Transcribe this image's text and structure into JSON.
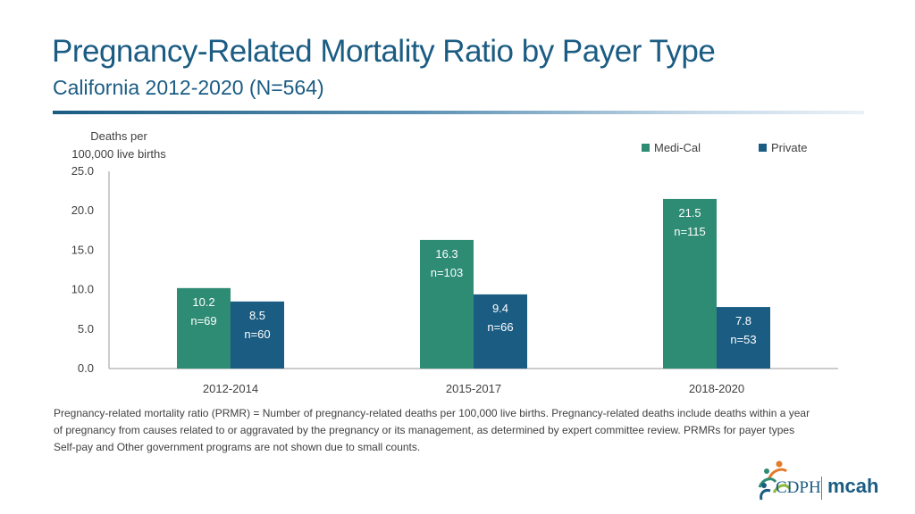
{
  "header": {
    "title": "Pregnancy-Related Mortality Ratio by Payer Type",
    "subtitle": "California 2012-2020 (N=564)"
  },
  "colors": {
    "title": "#1b5c83",
    "medi_cal": "#2e8b74",
    "private": "#1b5c83",
    "axis": "#999999",
    "text": "#404040"
  },
  "chart_data": {
    "type": "bar",
    "title": "",
    "ylabel_lines": [
      "Deaths per",
      "100,000 live births"
    ],
    "xlabel": "",
    "ylim": [
      0,
      25
    ],
    "yticks": [
      0,
      5,
      10,
      15,
      20,
      25
    ],
    "ytick_labels": [
      "0.0",
      "5.0",
      "10.0",
      "15.0",
      "20.0",
      "25.0"
    ],
    "categories": [
      "2012-2014",
      "2015-2017",
      "2018-2020"
    ],
    "legend_position": "top-right",
    "series": [
      {
        "name": "Medi-Cal",
        "color": "#2e8b74",
        "values": [
          10.2,
          16.3,
          21.5
        ],
        "value_labels": [
          "10.2",
          "16.3",
          "21.5"
        ],
        "count_labels": [
          "n=69",
          "n=103",
          "n=115"
        ]
      },
      {
        "name": "Private",
        "color": "#1b5c83",
        "values": [
          8.5,
          9.4,
          7.8
        ],
        "value_labels": [
          "8.5",
          "9.4",
          "7.8"
        ],
        "count_labels": [
          "n=60",
          "n=66",
          "n=53"
        ]
      }
    ]
  },
  "footnote": "Pregnancy-related mortality ratio (PRMR) = Number of pregnancy-related deaths per 100,000 live births. Pregnancy-related deaths include deaths within a year of pregnancy from causes related to or aggravated by the pregnancy or its management, as determined by expert committee review. PRMRs for payer types Self-pay and Other government programs are not shown due to small counts.",
  "logo": {
    "org": "CDPH",
    "program": "mcah"
  }
}
